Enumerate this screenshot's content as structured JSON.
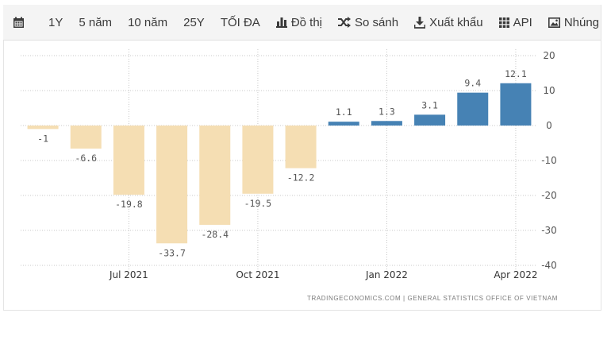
{
  "toolbar": {
    "calendar_icon": "calendar-icon",
    "range_1y": "1Y",
    "range_5y": "5 năm",
    "range_10y": "10 năm",
    "range_25y": "25Y",
    "range_max": "TỐI ĐA",
    "chart_label": "Đồ thị",
    "compare_label": "So sánh",
    "export_label": "Xuất khẩu",
    "api_label": "API",
    "embed_label": "Nhúng"
  },
  "footer": {
    "source_text": "TRADINGECONOMICS.COM  |  GENERAL STATISTICS OFFICE OF VIETNAM"
  },
  "colors": {
    "negative_bar": "#f5deb3",
    "positive_bar": "#4682b4",
    "grid": "#c8c8c8",
    "text": "#555555"
  },
  "chart_data": {
    "type": "bar",
    "title": "",
    "xlabel": "",
    "ylabel": "",
    "categories": [
      "2021-05",
      "2021-06",
      "2021-07",
      "2021-08",
      "2021-09",
      "2021-10",
      "2021-11",
      "2021-12",
      "2022-01",
      "2022-02",
      "2022-03",
      "2022-04"
    ],
    "values": [
      -1,
      -6.6,
      -19.8,
      -33.7,
      -28.4,
      -19.5,
      -12.2,
      1.1,
      1.3,
      3.1,
      9.4,
      12.1
    ],
    "data_labels": [
      "-1",
      "-6.6",
      "-19.8",
      "-33.7",
      "-28.4",
      "-19.5",
      "-12.2",
      "1.1",
      "1.3",
      "3.1",
      "9.4",
      "12.1"
    ],
    "x_tick_labels": [
      "Jul 2021",
      "Oct 2021",
      "Jan 2022",
      "Apr 2022"
    ],
    "x_tick_positions": [
      "2021-07",
      "2021-10",
      "2022-01",
      "2022-04"
    ],
    "y_ticks": [
      20,
      10,
      0,
      -10,
      -20,
      -30,
      -40
    ],
    "ylim": [
      -40,
      20
    ],
    "y_axis_side": "right",
    "grid": true
  }
}
